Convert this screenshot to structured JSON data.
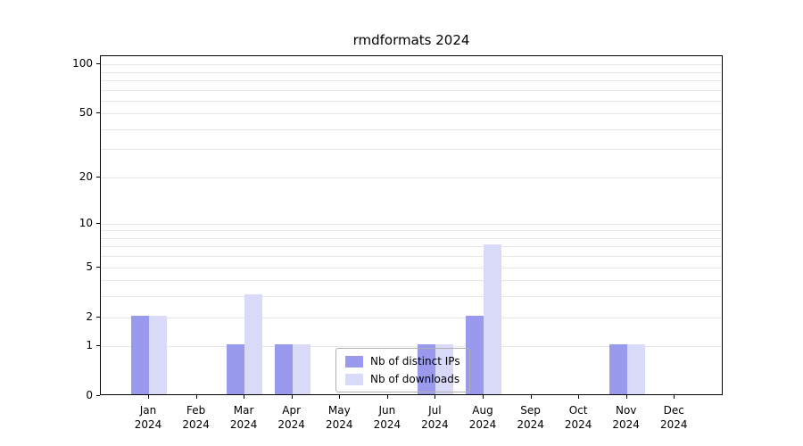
{
  "chart_data": {
    "type": "bar",
    "title": "rmdformats 2024",
    "categories": [
      "Jan",
      "Feb",
      "Mar",
      "Apr",
      "May",
      "Jun",
      "Jul",
      "Aug",
      "Sep",
      "Oct",
      "Nov",
      "Dec"
    ],
    "xtick_year": "2024",
    "series": [
      {
        "name": "Nb of distinct IPs",
        "color": "#9999ee",
        "values": [
          2,
          0,
          1,
          1,
          0,
          0,
          1,
          2,
          0,
          0,
          1,
          0
        ]
      },
      {
        "name": "Nb of downloads",
        "color": "#d9d9f8",
        "values": [
          2,
          0,
          3,
          1,
          0,
          0,
          1,
          7,
          0,
          0,
          1,
          0
        ]
      }
    ],
    "xlabel": "",
    "ylabel": "",
    "yscale": "log1p",
    "ylim": [
      0,
      112
    ],
    "yticks": [
      0,
      1,
      2,
      5,
      10,
      20,
      50,
      100
    ],
    "gridline_values": [
      1,
      2,
      3,
      4,
      5,
      6,
      7,
      8,
      9,
      10,
      20,
      30,
      40,
      50,
      60,
      70,
      80,
      90,
      100
    ],
    "grid": "on",
    "legend_position": "lower-center-inside",
    "colors": {
      "grid": "#e7e7e7",
      "axis": "#000000",
      "legend_border": "#b0b0b0",
      "background": "#ffffff"
    }
  }
}
